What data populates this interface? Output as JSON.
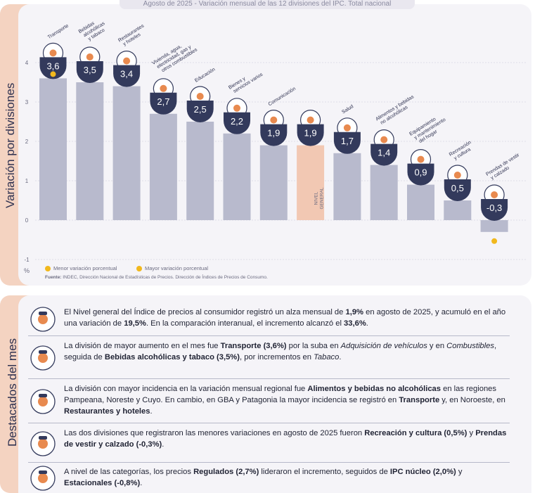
{
  "side": {
    "chart_label": "Variación por divisiones",
    "highlights_label": "Destacados del mes"
  },
  "header": {
    "period": "Agosto de 2025",
    "separator": " - ",
    "title": "Variación mensual de las 12 divisiones del IPC. Total nacional"
  },
  "chart_data": {
    "type": "bar",
    "title": "Agosto de 2025 - Variación mensual de las 12 divisiones del IPC. Total nacional",
    "ylabel": "Variación por divisiones",
    "y_unit": "%",
    "ylim": [
      -1,
      4
    ],
    "yticks": [
      "-1",
      "0",
      "1",
      "2",
      "3",
      "4"
    ],
    "grid": true,
    "categories": [
      [
        "Transporte"
      ],
      [
        "Bebidas",
        "alcohólicas",
        "y tabaco"
      ],
      [
        "Restaurantes",
        "y hoteles"
      ],
      [
        "Vivienda, agua,",
        "electricidad, gas y",
        "otros combustibles"
      ],
      [
        "Educación"
      ],
      [
        "Bienes y",
        "servicios varios"
      ],
      [
        "Comunicación"
      ],
      [
        "NIVEL",
        "GENERAL"
      ],
      [
        "Salud"
      ],
      [
        "Alimentos y bebidas",
        "no alcohólicas"
      ],
      [
        "Equipamiento",
        "y mantenimiento",
        "del hogar"
      ],
      [
        "Recreación",
        "y cultura"
      ],
      [
        "Prendas de vestir",
        "y calzado"
      ]
    ],
    "values": [
      3.6,
      3.5,
      3.4,
      2.7,
      2.5,
      2.2,
      1.9,
      1.9,
      1.7,
      1.4,
      0.9,
      0.5,
      -0.3
    ],
    "value_labels": [
      "3,6",
      "3,5",
      "3,4",
      "2,7",
      "2,5",
      "2,2",
      "1,9",
      "1,9",
      "1,7",
      "1,4",
      "0,9",
      "0,5",
      "-0,3"
    ],
    "highlight_index": 7,
    "max_index": 0,
    "min_index": 12,
    "colors": {
      "bar": "#b8bacd",
      "highlight_bar": "#f2c8b3",
      "badge": "#333a5c",
      "marker": "#f1b81d",
      "grid": "#c8c8d6"
    }
  },
  "legend": {
    "min_label": "Menor variación porcentual",
    "max_label": "Mayor variación porcentual"
  },
  "source": {
    "label": "Fuente:",
    "text": "INDEC, Dirección Nacional de Estadísticas de Precios. Dirección de Índices de Precios de Consumo."
  },
  "highlights": [
    {
      "icon": "basket-icon",
      "segments": [
        {
          "t": "El Nivel general del Índice de precios al consumidor registró un alza mensual de "
        },
        {
          "t": "1,9%",
          "b": true
        },
        {
          "t": " en agosto de 2025, y acumuló en el año una variación de "
        },
        {
          "t": "19,5%",
          "b": true
        },
        {
          "t": ". En la comparación interanual, el incremento alcanzó el "
        },
        {
          "t": "33,6%",
          "b": true
        },
        {
          "t": "."
        }
      ]
    },
    {
      "icon": "bus-icon",
      "segments": [
        {
          "t": "La división de mayor aumento en el mes fue "
        },
        {
          "t": "Transporte",
          "b": true
        },
        {
          "t": " "
        },
        {
          "t": "(3,6%)",
          "b": true
        },
        {
          "t": " por la suba en "
        },
        {
          "t": "Adquisición de vehículos",
          "i": true
        },
        {
          "t": " y en "
        },
        {
          "t": "Combustibles",
          "i": true
        },
        {
          "t": ", seguida de "
        },
        {
          "t": "Bebidas alcohólicas y tabaco (3,5%)",
          "b": true
        },
        {
          "t": ", por incrementos en "
        },
        {
          "t": "Tabaco",
          "i": true
        },
        {
          "t": "."
        }
      ]
    },
    {
      "icon": "food-icon",
      "segments": [
        {
          "t": "La división con mayor incidencia en la variación mensual regional fue "
        },
        {
          "t": "Alimentos y bebidas no alcohólicas",
          "b": true
        },
        {
          "t": " en las regiones Pampeana, Noreste y Cuyo. En cambio, en GBA y Patagonia la mayor incidencia se registró en "
        },
        {
          "t": "Transporte",
          "b": true
        },
        {
          "t": " y, en Noroeste, en "
        },
        {
          "t": "Restaurantes y hoteles",
          "b": true
        },
        {
          "t": "."
        }
      ]
    },
    {
      "icon": "umbrella-icon",
      "segments": [
        {
          "t": "Las dos divisiones que registraron las menores variaciones en agosto de 2025 fueron "
        },
        {
          "t": "Recreación y cultura (0,5%)",
          "b": true
        },
        {
          "t": " y "
        },
        {
          "t": "Prendas de vestir y calzado (-0,3%)",
          "b": true
        },
        {
          "t": "."
        }
      ]
    },
    {
      "icon": "price-tag-icon",
      "segments": [
        {
          "t": "A nivel de las categorías, los precios "
        },
        {
          "t": "Regulados (2,7%)",
          "b": true
        },
        {
          "t": " lideraron el incremento, seguidos de "
        },
        {
          "t": "IPC núcleo (2,0%)",
          "b": true
        },
        {
          "t": " y "
        },
        {
          "t": "Estacionales (-0,8%)",
          "b": true
        },
        {
          "t": "."
        }
      ]
    }
  ]
}
